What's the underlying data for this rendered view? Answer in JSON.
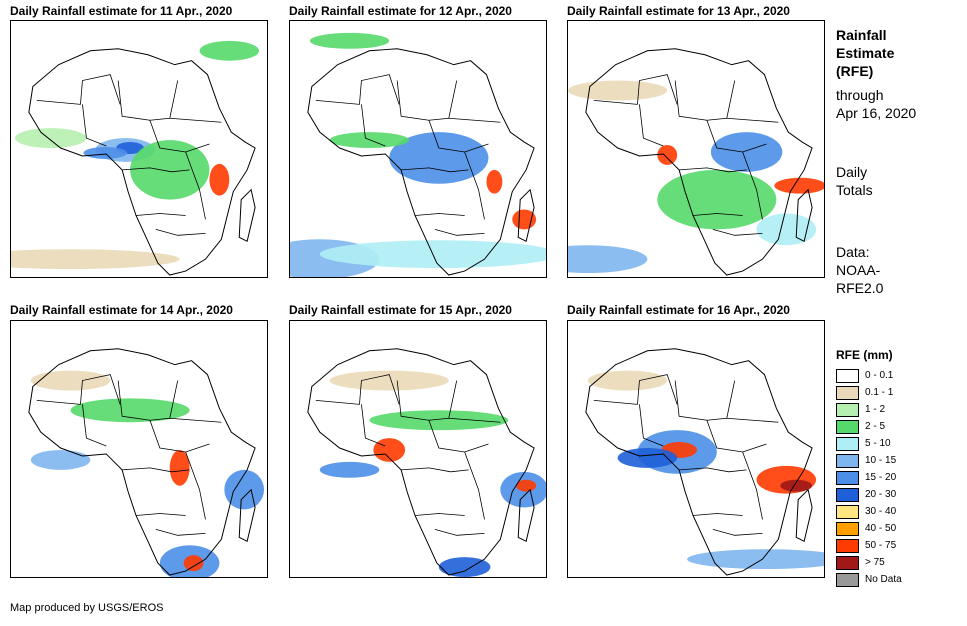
{
  "panels": [
    {
      "title": "Daily Rainfall estimate for 11 Apr., 2020"
    },
    {
      "title": "Daily Rainfall estimate for 12 Apr., 2020"
    },
    {
      "title": "Daily Rainfall estimate for 13 Apr., 2020"
    },
    {
      "title": "Daily Rainfall estimate for 14 Apr., 2020"
    },
    {
      "title": "Daily Rainfall estimate for 15 Apr., 2020"
    },
    {
      "title": "Daily Rainfall estimate for 16 Apr., 2020"
    }
  ],
  "side": {
    "title_line1": "Rainfall",
    "title_line2": "Estimate",
    "title_line3": "(RFE)",
    "through_line1": "through",
    "through_line2": "Apr 16, 2020",
    "totals_line1": "Daily",
    "totals_line2": "Totals",
    "data_line1": "Data:",
    "data_line2": "NOAA-",
    "data_line3": "RFE2.0"
  },
  "legend": {
    "title": "RFE (mm)",
    "items": [
      {
        "label": "0 - 0.1",
        "color": "#ffffff"
      },
      {
        "label": "0.1 - 1",
        "color": "#ead9b8"
      },
      {
        "label": "1 - 2",
        "color": "#b6f0b0"
      },
      {
        "label": "2 - 5",
        "color": "#55d96a"
      },
      {
        "label": "5 - 10",
        "color": "#aeeef5"
      },
      {
        "label": "10 - 15",
        "color": "#7fb6ee"
      },
      {
        "label": "15 - 20",
        "color": "#4c8fe8"
      },
      {
        "label": "20 - 30",
        "color": "#1f5fd8"
      },
      {
        "label": "30 - 40",
        "color": "#ffe680"
      },
      {
        "label": "40 - 50",
        "color": "#ffa000"
      },
      {
        "label": "50 - 75",
        "color": "#ff3b00"
      },
      {
        "label": "> 75",
        "color": "#a01818"
      },
      {
        "label": "No Data",
        "color": "#999999"
      }
    ]
  },
  "footer": "Map produced by USGS/EROS"
}
